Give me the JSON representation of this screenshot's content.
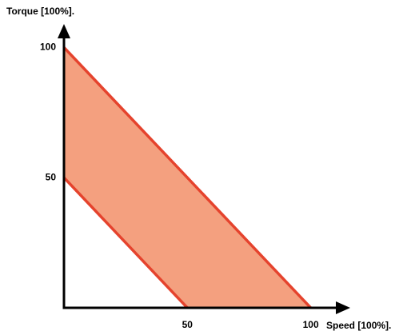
{
  "chart_data": {
    "type": "band",
    "xlabel": "Speed [100%].",
    "ylabel": "Torque [100%].",
    "series": [
      {
        "x": [
          0,
          100
        ],
        "values": [
          100,
          0
        ],
        "color": "#e5432d"
      },
      {
        "x": [
          0,
          50
        ],
        "values": [
          50,
          0
        ],
        "color": "#e5432d"
      }
    ],
    "fill": "#f4a07f",
    "xlim": [
      0,
      116
    ],
    "ylim": [
      0,
      109
    ],
    "xticks": [
      50,
      100
    ],
    "yticks": [
      50,
      100
    ]
  }
}
